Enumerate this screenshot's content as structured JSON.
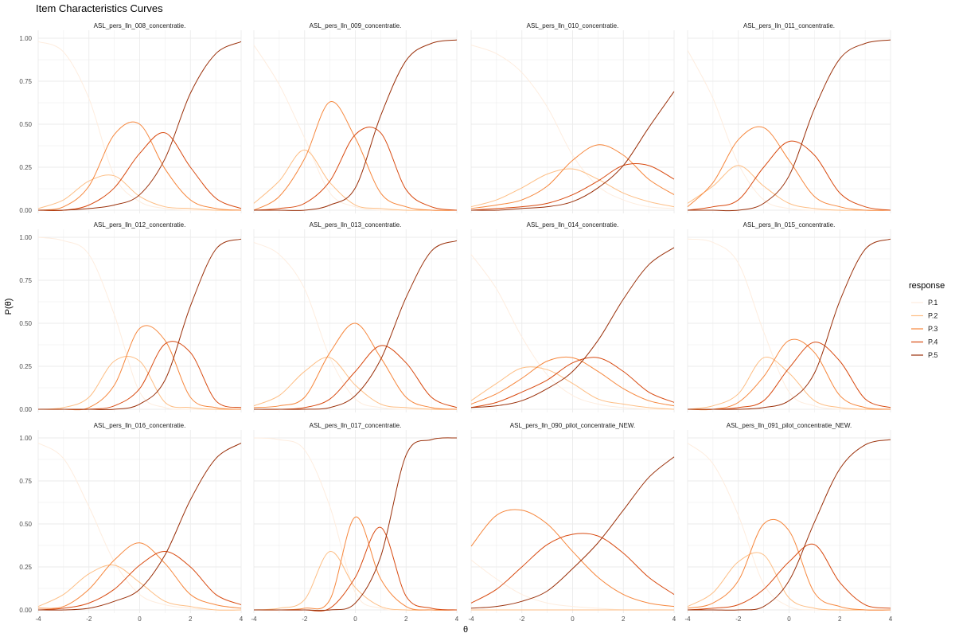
{
  "chart_data": {
    "type": "line",
    "title": "Item Characteristics Curves",
    "xlabel": "θ",
    "ylabel": "P(θ)",
    "xlim": [
      -4,
      4
    ],
    "ylim": [
      0,
      1
    ],
    "x_ticks": [
      "-4",
      "-2",
      "0",
      "2",
      "4"
    ],
    "y_ticks": [
      "0.00",
      "0.25",
      "0.50",
      "0.75",
      "1.00"
    ],
    "grid": true,
    "legend": {
      "title": "response",
      "position": "right",
      "entries": [
        "P.1",
        "P.2",
        "P.3",
        "P.4",
        "P.5"
      ],
      "colors": [
        "#feeddf",
        "#fdbe85",
        "#f6873d",
        "#d84a10",
        "#9a300a"
      ]
    },
    "x_samples": [
      -4,
      -3,
      -2,
      -1,
      0,
      1,
      2,
      3,
      4
    ],
    "panels": [
      {
        "name": "ASL_pers_lln_008_concentratie.",
        "series": [
          {
            "name": "P.1",
            "values": [
              0.98,
              0.92,
              0.65,
              0.2,
              0.05,
              0.01,
              0.0,
              0.0,
              0.0
            ]
          },
          {
            "name": "P.2",
            "values": [
              0.01,
              0.06,
              0.17,
              0.2,
              0.08,
              0.02,
              0.01,
              0.0,
              0.0
            ]
          },
          {
            "name": "P.3",
            "values": [
              0.0,
              0.02,
              0.14,
              0.44,
              0.5,
              0.24,
              0.06,
              0.01,
              0.0
            ]
          },
          {
            "name": "P.4",
            "values": [
              0.0,
              0.0,
              0.03,
              0.13,
              0.33,
              0.45,
              0.25,
              0.07,
              0.01
            ]
          },
          {
            "name": "P.5",
            "values": [
              0.0,
              0.0,
              0.01,
              0.03,
              0.09,
              0.3,
              0.68,
              0.91,
              0.98
            ]
          }
        ]
      },
      {
        "name": "ASL_pers_lln_009_concentratie.",
        "series": [
          {
            "name": "P.1",
            "values": [
              0.96,
              0.73,
              0.42,
              0.1,
              0.02,
              0.0,
              0.0,
              0.0,
              0.0
            ]
          },
          {
            "name": "P.2",
            "values": [
              0.04,
              0.17,
              0.35,
              0.16,
              0.03,
              0.01,
              0.0,
              0.0,
              0.0
            ]
          },
          {
            "name": "P.3",
            "values": [
              0.0,
              0.08,
              0.3,
              0.63,
              0.42,
              0.1,
              0.02,
              0.0,
              0.0
            ]
          },
          {
            "name": "P.4",
            "values": [
              0.0,
              0.01,
              0.04,
              0.17,
              0.44,
              0.45,
              0.12,
              0.02,
              0.0
            ]
          },
          {
            "name": "P.5",
            "values": [
              0.0,
              0.0,
              0.0,
              0.03,
              0.13,
              0.55,
              0.87,
              0.97,
              0.99
            ]
          }
        ]
      },
      {
        "name": "ASL_pers_lln_010_concentratie.",
        "series": [
          {
            "name": "P.1",
            "values": [
              0.96,
              0.91,
              0.8,
              0.6,
              0.32,
              0.14,
              0.06,
              0.02,
              0.01
            ]
          },
          {
            "name": "P.2",
            "values": [
              0.02,
              0.06,
              0.13,
              0.21,
              0.24,
              0.18,
              0.1,
              0.05,
              0.02
            ]
          },
          {
            "name": "P.3",
            "values": [
              0.01,
              0.03,
              0.06,
              0.14,
              0.29,
              0.38,
              0.32,
              0.18,
              0.09
            ]
          },
          {
            "name": "P.4",
            "values": [
              0.0,
              0.01,
              0.02,
              0.04,
              0.09,
              0.17,
              0.26,
              0.26,
              0.18
            ]
          },
          {
            "name": "P.5",
            "values": [
              0.0,
              0.0,
              0.01,
              0.02,
              0.05,
              0.13,
              0.26,
              0.48,
              0.69
            ]
          }
        ]
      },
      {
        "name": "ASL_pers_lln_011_concentratie.",
        "series": [
          {
            "name": "P.1",
            "values": [
              0.93,
              0.65,
              0.27,
              0.06,
              0.01,
              0.0,
              0.0,
              0.0,
              0.0
            ]
          },
          {
            "name": "P.2",
            "values": [
              0.04,
              0.14,
              0.26,
              0.14,
              0.04,
              0.01,
              0.0,
              0.0,
              0.0
            ]
          },
          {
            "name": "P.3",
            "values": [
              0.02,
              0.16,
              0.41,
              0.48,
              0.29,
              0.08,
              0.02,
              0.0,
              0.0
            ]
          },
          {
            "name": "P.4",
            "values": [
              0.0,
              0.02,
              0.06,
              0.25,
              0.4,
              0.32,
              0.1,
              0.02,
              0.0
            ]
          },
          {
            "name": "P.5",
            "values": [
              0.0,
              0.0,
              0.0,
              0.04,
              0.2,
              0.59,
              0.88,
              0.97,
              0.99
            ]
          }
        ]
      },
      {
        "name": "ASL_pers_lln_012_concentratie.",
        "series": [
          {
            "name": "P.1",
            "values": [
              1.0,
              0.98,
              0.9,
              0.55,
              0.1,
              0.01,
              0.0,
              0.0,
              0.0
            ]
          },
          {
            "name": "P.2",
            "values": [
              0.0,
              0.01,
              0.07,
              0.28,
              0.28,
              0.04,
              0.01,
              0.0,
              0.0
            ]
          },
          {
            "name": "P.3",
            "values": [
              0.0,
              0.0,
              0.01,
              0.14,
              0.47,
              0.4,
              0.07,
              0.01,
              0.0
            ]
          },
          {
            "name": "P.4",
            "values": [
              0.0,
              0.0,
              0.0,
              0.02,
              0.12,
              0.38,
              0.33,
              0.05,
              0.01
            ]
          },
          {
            "name": "P.5",
            "values": [
              0.0,
              0.0,
              0.0,
              0.0,
              0.03,
              0.17,
              0.6,
              0.93,
              0.99
            ]
          }
        ]
      },
      {
        "name": "ASL_pers_lln_013_concentratie.",
        "series": [
          {
            "name": "P.1",
            "values": [
              0.97,
              0.9,
              0.7,
              0.3,
              0.06,
              0.01,
              0.0,
              0.0,
              0.0
            ]
          },
          {
            "name": "P.2",
            "values": [
              0.02,
              0.08,
              0.22,
              0.3,
              0.14,
              0.03,
              0.01,
              0.0,
              0.0
            ]
          },
          {
            "name": "P.3",
            "values": [
              0.01,
              0.02,
              0.07,
              0.33,
              0.5,
              0.3,
              0.07,
              0.01,
              0.0
            ]
          },
          {
            "name": "P.4",
            "values": [
              0.0,
              0.0,
              0.01,
              0.06,
              0.22,
              0.37,
              0.27,
              0.07,
              0.01
            ]
          },
          {
            "name": "P.5",
            "values": [
              0.0,
              0.0,
              0.0,
              0.01,
              0.08,
              0.29,
              0.65,
              0.92,
              0.98
            ]
          }
        ]
      },
      {
        "name": "ASL_pers_lln_014_concentratie.",
        "series": [
          {
            "name": "P.1",
            "values": [
              0.9,
              0.7,
              0.42,
              0.2,
              0.08,
              0.03,
              0.01,
              0.0,
              0.0
            ]
          },
          {
            "name": "P.2",
            "values": [
              0.05,
              0.15,
              0.24,
              0.23,
              0.15,
              0.06,
              0.03,
              0.01,
              0.0
            ]
          },
          {
            "name": "P.3",
            "values": [
              0.03,
              0.09,
              0.18,
              0.28,
              0.3,
              0.22,
              0.12,
              0.05,
              0.02
            ]
          },
          {
            "name": "P.4",
            "values": [
              0.01,
              0.04,
              0.1,
              0.17,
              0.27,
              0.3,
              0.22,
              0.1,
              0.04
            ]
          },
          {
            "name": "P.5",
            "values": [
              0.01,
              0.02,
              0.05,
              0.12,
              0.22,
              0.4,
              0.64,
              0.84,
              0.94
            ]
          }
        ]
      },
      {
        "name": "ASL_pers_lln_015_concentratie.",
        "series": [
          {
            "name": "P.1",
            "values": [
              0.99,
              0.97,
              0.85,
              0.45,
              0.1,
              0.02,
              0.0,
              0.0,
              0.0
            ]
          },
          {
            "name": "P.2",
            "values": [
              0.0,
              0.02,
              0.09,
              0.3,
              0.21,
              0.05,
              0.01,
              0.0,
              0.0
            ]
          },
          {
            "name": "P.3",
            "values": [
              0.0,
              0.0,
              0.04,
              0.19,
              0.4,
              0.33,
              0.08,
              0.01,
              0.0
            ]
          },
          {
            "name": "P.4",
            "values": [
              0.0,
              0.0,
              0.01,
              0.05,
              0.24,
              0.39,
              0.28,
              0.06,
              0.01
            ]
          },
          {
            "name": "P.5",
            "values": [
              0.0,
              0.0,
              0.0,
              0.01,
              0.05,
              0.21,
              0.63,
              0.93,
              0.99
            ]
          }
        ]
      },
      {
        "name": "ASL_pers_lln_016_concentratie.",
        "series": [
          {
            "name": "P.1",
            "values": [
              0.97,
              0.88,
              0.6,
              0.28,
              0.09,
              0.03,
              0.01,
              0.0,
              0.0
            ]
          },
          {
            "name": "P.2",
            "values": [
              0.02,
              0.09,
              0.21,
              0.26,
              0.16,
              0.05,
              0.02,
              0.0,
              0.0
            ]
          },
          {
            "name": "P.3",
            "values": [
              0.01,
              0.02,
              0.12,
              0.29,
              0.39,
              0.27,
              0.09,
              0.03,
              0.01
            ]
          },
          {
            "name": "P.4",
            "values": [
              0.0,
              0.01,
              0.04,
              0.12,
              0.26,
              0.34,
              0.25,
              0.09,
              0.03
            ]
          },
          {
            "name": "P.5",
            "values": [
              0.0,
              0.0,
              0.01,
              0.05,
              0.12,
              0.32,
              0.64,
              0.88,
              0.97
            ]
          }
        ]
      },
      {
        "name": "ASL_pers_lln_017_concentratie.",
        "series": [
          {
            "name": "P.1",
            "values": [
              1.0,
              0.99,
              0.93,
              0.6,
              0.1,
              0.01,
              0.0,
              0.0,
              0.0
            ]
          },
          {
            "name": "P.2",
            "values": [
              0.0,
              0.01,
              0.06,
              0.34,
              0.13,
              0.02,
              0.0,
              0.0,
              0.0
            ]
          },
          {
            "name": "P.3",
            "values": [
              0.0,
              0.0,
              0.01,
              0.06,
              0.54,
              0.18,
              0.02,
              0.0,
              0.0
            ]
          },
          {
            "name": "P.4",
            "values": [
              0.0,
              0.0,
              0.0,
              0.01,
              0.19,
              0.48,
              0.08,
              0.01,
              0.0
            ]
          },
          {
            "name": "P.5",
            "values": [
              0.0,
              0.0,
              0.0,
              0.0,
              0.04,
              0.31,
              0.9,
              0.99,
              1.0
            ]
          }
        ]
      },
      {
        "name": "ASL_pers_lln_090_pilot_concentratie_NEW.",
        "series": [
          {
            "name": "P.1",
            "values": [
              0.29,
              0.18,
              0.09,
              0.04,
              0.02,
              0.01,
              0.0,
              0.0,
              0.0
            ]
          },
          {
            "name": "P.2",
            "values": [
              0.0,
              0.0,
              0.0,
              0.0,
              0.0,
              0.0,
              0.0,
              0.0,
              0.0
            ]
          },
          {
            "name": "P.3",
            "values": [
              0.37,
              0.55,
              0.58,
              0.5,
              0.34,
              0.19,
              0.09,
              0.04,
              0.02
            ]
          },
          {
            "name": "P.4",
            "values": [
              0.04,
              0.12,
              0.25,
              0.38,
              0.44,
              0.43,
              0.33,
              0.19,
              0.09
            ]
          },
          {
            "name": "P.5",
            "values": [
              0.01,
              0.02,
              0.05,
              0.11,
              0.24,
              0.39,
              0.58,
              0.77,
              0.89
            ]
          }
        ]
      },
      {
        "name": "ASL_pers_lln_091_pilot_concentratie_NEW.",
        "series": [
          {
            "name": "P.1",
            "values": [
              0.97,
              0.85,
              0.55,
              0.15,
              0.02,
              0.0,
              0.0,
              0.0,
              0.0
            ]
          },
          {
            "name": "P.2",
            "values": [
              0.02,
              0.1,
              0.28,
              0.32,
              0.07,
              0.01,
              0.0,
              0.0,
              0.0
            ]
          },
          {
            "name": "P.3",
            "values": [
              0.01,
              0.04,
              0.17,
              0.5,
              0.46,
              0.1,
              0.02,
              0.0,
              0.0
            ]
          },
          {
            "name": "P.4",
            "values": [
              0.0,
              0.01,
              0.03,
              0.12,
              0.28,
              0.38,
              0.16,
              0.03,
              0.01
            ]
          },
          {
            "name": "P.5",
            "values": [
              0.0,
              0.0,
              0.0,
              0.02,
              0.17,
              0.51,
              0.82,
              0.96,
              0.99
            ]
          }
        ]
      }
    ]
  }
}
